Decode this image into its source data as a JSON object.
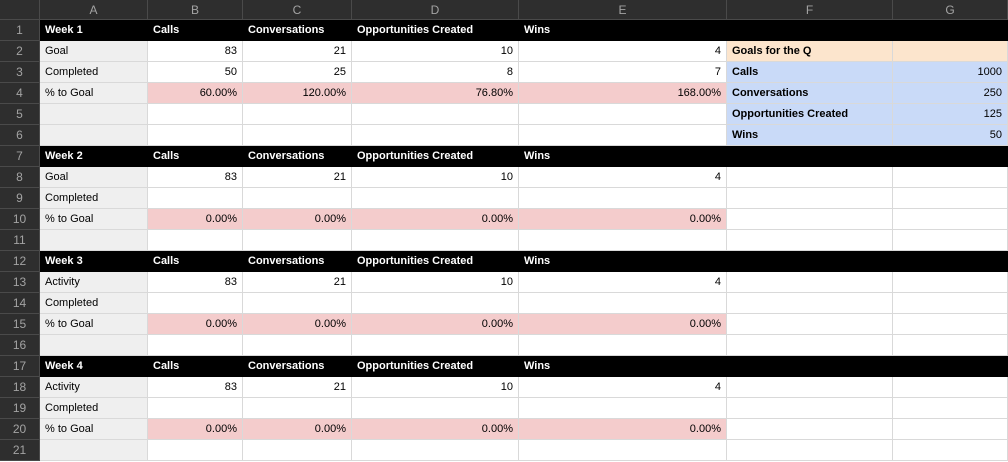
{
  "colors": {
    "chrome-bg": "#2e2e2e",
    "chrome-line": "#4a4a4a",
    "chrome-text": "#a3a3a3",
    "black-bar": "#000000",
    "gray-cell": "#efefef",
    "pink-cell": "#f4cccc",
    "blue-cell": "#c9daf8",
    "peach-cell": "#fce5cd",
    "gridline": "#d9d9d9",
    "cell-text": "#000000",
    "header-text": "#ffffff"
  },
  "grid": {
    "column_headers": [
      "A",
      "B",
      "C",
      "D",
      "E",
      "F",
      "G"
    ],
    "rows": [
      {
        "num": "1",
        "cells": [
          {
            "t": "Week 1",
            "bg": "k"
          },
          {
            "t": "Calls",
            "bg": "k"
          },
          {
            "t": "Conversations",
            "bg": "k"
          },
          {
            "t": "Opportunities Created",
            "bg": "k"
          },
          {
            "t": "Wins",
            "bg": "k"
          },
          {
            "t": "",
            "bg": "k"
          },
          {
            "t": "",
            "bg": "k"
          }
        ]
      },
      {
        "num": "2",
        "cells": [
          {
            "t": "Goal",
            "bg": "g"
          },
          {
            "t": "83",
            "al": "r"
          },
          {
            "t": "21",
            "al": "r"
          },
          {
            "t": "10",
            "al": "r"
          },
          {
            "t": "4",
            "al": "r"
          },
          {
            "t": "Goals for the Q",
            "bg": "o",
            "fb": true
          },
          {
            "t": "",
            "bg": "o"
          }
        ]
      },
      {
        "num": "3",
        "cells": [
          {
            "t": "Completed",
            "bg": "g"
          },
          {
            "t": "50",
            "al": "r"
          },
          {
            "t": "25",
            "al": "r"
          },
          {
            "t": "8",
            "al": "r"
          },
          {
            "t": "7",
            "al": "r"
          },
          {
            "t": "Calls",
            "bg": "bl",
            "fb": true
          },
          {
            "t": "1000",
            "bg": "bl",
            "al": "r"
          }
        ]
      },
      {
        "num": "4",
        "cells": [
          {
            "t": "% to Goal",
            "bg": "g"
          },
          {
            "t": "60.00%",
            "bg": "p",
            "al": "r"
          },
          {
            "t": "120.00%",
            "bg": "p",
            "al": "r"
          },
          {
            "t": "76.80%",
            "bg": "p",
            "al": "r"
          },
          {
            "t": "168.00%",
            "bg": "p",
            "al": "r"
          },
          {
            "t": "Conversations",
            "bg": "bl",
            "fb": true
          },
          {
            "t": "250",
            "bg": "bl",
            "al": "r"
          }
        ]
      },
      {
        "num": "5",
        "cells": [
          {
            "t": "",
            "bg": "g"
          },
          {
            "t": ""
          },
          {
            "t": ""
          },
          {
            "t": ""
          },
          {
            "t": ""
          },
          {
            "t": "Opportunities Created",
            "bg": "bl",
            "fb": true
          },
          {
            "t": "125",
            "bg": "bl",
            "al": "r"
          }
        ]
      },
      {
        "num": "6",
        "cells": [
          {
            "t": "",
            "bg": "g"
          },
          {
            "t": ""
          },
          {
            "t": ""
          },
          {
            "t": ""
          },
          {
            "t": ""
          },
          {
            "t": "Wins",
            "bg": "bl",
            "fb": true
          },
          {
            "t": "50",
            "bg": "bl",
            "al": "r"
          }
        ]
      },
      {
        "num": "7",
        "cells": [
          {
            "t": "Week 2",
            "bg": "k"
          },
          {
            "t": "Calls",
            "bg": "k"
          },
          {
            "t": "Conversations",
            "bg": "k"
          },
          {
            "t": "Opportunities Created",
            "bg": "k"
          },
          {
            "t": "Wins",
            "bg": "k"
          },
          {
            "t": "",
            "bg": "k"
          },
          {
            "t": "",
            "bg": "k"
          }
        ]
      },
      {
        "num": "8",
        "cells": [
          {
            "t": "Goal",
            "bg": "g"
          },
          {
            "t": "83",
            "al": "r"
          },
          {
            "t": "21",
            "al": "r"
          },
          {
            "t": "10",
            "al": "r"
          },
          {
            "t": "4",
            "al": "r"
          },
          {
            "t": ""
          },
          {
            "t": ""
          }
        ]
      },
      {
        "num": "9",
        "cells": [
          {
            "t": "Completed",
            "bg": "g"
          },
          {
            "t": ""
          },
          {
            "t": ""
          },
          {
            "t": ""
          },
          {
            "t": ""
          },
          {
            "t": ""
          },
          {
            "t": ""
          }
        ]
      },
      {
        "num": "10",
        "cells": [
          {
            "t": "% to Goal",
            "bg": "g"
          },
          {
            "t": "0.00%",
            "bg": "p",
            "al": "r"
          },
          {
            "t": "0.00%",
            "bg": "p",
            "al": "r"
          },
          {
            "t": "0.00%",
            "bg": "p",
            "al": "r"
          },
          {
            "t": "0.00%",
            "bg": "p",
            "al": "r"
          },
          {
            "t": ""
          },
          {
            "t": ""
          }
        ]
      },
      {
        "num": "11",
        "cells": [
          {
            "t": "",
            "bg": "g"
          },
          {
            "t": ""
          },
          {
            "t": ""
          },
          {
            "t": ""
          },
          {
            "t": ""
          },
          {
            "t": ""
          },
          {
            "t": ""
          }
        ]
      },
      {
        "num": "12",
        "cells": [
          {
            "t": "Week 3",
            "bg": "k"
          },
          {
            "t": "Calls",
            "bg": "k"
          },
          {
            "t": "Conversations",
            "bg": "k"
          },
          {
            "t": "Opportunities Created",
            "bg": "k"
          },
          {
            "t": "Wins",
            "bg": "k"
          },
          {
            "t": "",
            "bg": "k"
          },
          {
            "t": "",
            "bg": "k"
          }
        ]
      },
      {
        "num": "13",
        "cells": [
          {
            "t": "Activity",
            "bg": "g"
          },
          {
            "t": "83",
            "al": "r"
          },
          {
            "t": "21",
            "al": "r"
          },
          {
            "t": "10",
            "al": "r"
          },
          {
            "t": "4",
            "al": "r"
          },
          {
            "t": ""
          },
          {
            "t": ""
          }
        ]
      },
      {
        "num": "14",
        "cells": [
          {
            "t": "Completed",
            "bg": "g"
          },
          {
            "t": ""
          },
          {
            "t": ""
          },
          {
            "t": ""
          },
          {
            "t": ""
          },
          {
            "t": ""
          },
          {
            "t": ""
          }
        ]
      },
      {
        "num": "15",
        "cells": [
          {
            "t": "% to Goal",
            "bg": "g"
          },
          {
            "t": "0.00%",
            "bg": "p",
            "al": "r"
          },
          {
            "t": "0.00%",
            "bg": "p",
            "al": "r"
          },
          {
            "t": "0.00%",
            "bg": "p",
            "al": "r"
          },
          {
            "t": "0.00%",
            "bg": "p",
            "al": "r"
          },
          {
            "t": ""
          },
          {
            "t": ""
          }
        ]
      },
      {
        "num": "16",
        "cells": [
          {
            "t": "",
            "bg": "g"
          },
          {
            "t": ""
          },
          {
            "t": ""
          },
          {
            "t": ""
          },
          {
            "t": ""
          },
          {
            "t": ""
          },
          {
            "t": ""
          }
        ]
      },
      {
        "num": "17",
        "cells": [
          {
            "t": "Week 4",
            "bg": "k"
          },
          {
            "t": "Calls",
            "bg": "k"
          },
          {
            "t": "Conversations",
            "bg": "k"
          },
          {
            "t": "Opportunities Created",
            "bg": "k"
          },
          {
            "t": "Wins",
            "bg": "k"
          },
          {
            "t": "",
            "bg": "k"
          },
          {
            "t": "",
            "bg": "k"
          }
        ]
      },
      {
        "num": "18",
        "cells": [
          {
            "t": "Activity",
            "bg": "g"
          },
          {
            "t": "83",
            "al": "r"
          },
          {
            "t": "21",
            "al": "r"
          },
          {
            "t": "10",
            "al": "r"
          },
          {
            "t": "4",
            "al": "r"
          },
          {
            "t": ""
          },
          {
            "t": ""
          }
        ]
      },
      {
        "num": "19",
        "cells": [
          {
            "t": "Completed",
            "bg": "g"
          },
          {
            "t": ""
          },
          {
            "t": ""
          },
          {
            "t": ""
          },
          {
            "t": ""
          },
          {
            "t": ""
          },
          {
            "t": ""
          }
        ]
      },
      {
        "num": "20",
        "cells": [
          {
            "t": "% to Goal",
            "bg": "g"
          },
          {
            "t": "0.00%",
            "bg": "p",
            "al": "r"
          },
          {
            "t": "0.00%",
            "bg": "p",
            "al": "r"
          },
          {
            "t": "0.00%",
            "bg": "p",
            "al": "r"
          },
          {
            "t": "0.00%",
            "bg": "p",
            "al": "r"
          },
          {
            "t": ""
          },
          {
            "t": ""
          }
        ]
      },
      {
        "num": "21",
        "cells": [
          {
            "t": "",
            "bg": "g"
          },
          {
            "t": ""
          },
          {
            "t": ""
          },
          {
            "t": ""
          },
          {
            "t": ""
          },
          {
            "t": ""
          },
          {
            "t": ""
          }
        ]
      }
    ]
  }
}
